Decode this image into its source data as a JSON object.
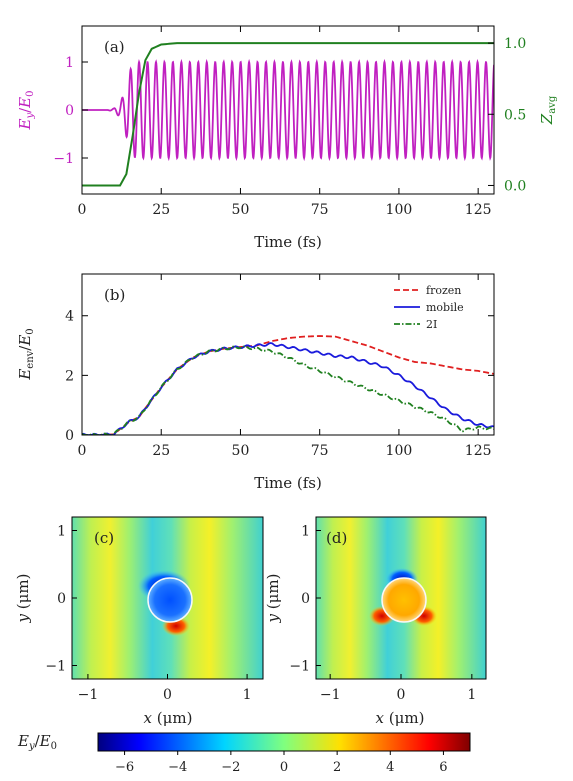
{
  "chart_data": [
    {
      "panel": "(a)",
      "type": "line",
      "xlabel": "Time (fs)",
      "ylabel_left": "E_y/E_0",
      "ylabel_right": "Z_avg",
      "xlim": [
        0,
        130
      ],
      "ylim_left": [
        -1.75,
        1.75
      ],
      "ylim_right": [
        -0.06,
        1.12
      ],
      "xticks": [
        0,
        25,
        50,
        75,
        100,
        125
      ],
      "yticks_left": [
        -1,
        0,
        1
      ],
      "yticks_right": [
        0.0,
        0.5,
        1.0
      ],
      "colors": {
        "field": "#c020c0",
        "zavg": "#208020"
      },
      "series": [
        {
          "axis": "left",
          "color": "#c020c0",
          "x": [
            0,
            8,
            10,
            12,
            13,
            14,
            15,
            16,
            17,
            18,
            19,
            20,
            130
          ],
          "y": [
            0,
            0,
            0.03,
            0.15,
            0.3,
            0.55,
            0.8,
            0.95,
            1,
            1,
            1,
            1,
            1
          ],
          "note_period_fs": 2.67
        },
        {
          "axis": "right",
          "color": "#208020",
          "x": [
            0,
            5,
            10,
            12,
            14,
            16,
            18,
            20,
            22,
            25,
            30,
            40,
            130
          ],
          "y": [
            0.0,
            0.0,
            0.0,
            0.0,
            0.08,
            0.35,
            0.65,
            0.88,
            0.96,
            0.99,
            1.0,
            1.0,
            1.0
          ]
        }
      ]
    },
    {
      "panel": "(b)",
      "type": "line",
      "xlabel": "Time (fs)",
      "ylabel": "E_env/E_0",
      "xlim": [
        0,
        130
      ],
      "ylim": [
        0,
        5.4
      ],
      "xticks": [
        0,
        25,
        50,
        75,
        100,
        125
      ],
      "yticks": [
        0,
        2,
        4
      ],
      "legend_position": "top-right",
      "series": [
        {
          "name": "frozen",
          "color": "#e02020",
          "style": "dashed",
          "x": [
            0,
            5,
            10,
            12,
            15,
            18,
            20,
            25,
            30,
            35,
            40,
            45,
            50,
            55,
            60,
            65,
            70,
            75,
            80,
            85,
            90,
            95,
            100,
            105,
            110,
            115,
            120,
            125,
            130
          ],
          "y": [
            0,
            0,
            0.02,
            0.2,
            0.45,
            0.6,
            0.9,
            1.6,
            2.2,
            2.6,
            2.8,
            2.9,
            2.95,
            3.0,
            3.15,
            3.25,
            3.3,
            3.32,
            3.3,
            3.15,
            3.0,
            2.8,
            2.6,
            2.45,
            2.4,
            2.3,
            2.2,
            2.15,
            2.05
          ]
        },
        {
          "name": "mobile",
          "color": "#1a1adc",
          "style": "solid",
          "x": [
            0,
            5,
            10,
            12,
            15,
            18,
            20,
            25,
            30,
            35,
            40,
            45,
            50,
            55,
            60,
            65,
            70,
            75,
            80,
            85,
            90,
            95,
            100,
            105,
            110,
            115,
            120,
            125,
            130
          ],
          "y": [
            0,
            0,
            0.02,
            0.2,
            0.45,
            0.6,
            0.9,
            1.6,
            2.2,
            2.6,
            2.8,
            2.9,
            2.95,
            3.0,
            3.05,
            2.95,
            2.85,
            2.75,
            2.65,
            2.6,
            2.45,
            2.3,
            2.0,
            1.65,
            1.25,
            0.85,
            0.55,
            0.35,
            0.25
          ]
        },
        {
          "name": "2I",
          "color": "#208020",
          "style": "dashdot",
          "x": [
            0,
            5,
            10,
            12,
            15,
            18,
            20,
            25,
            30,
            35,
            40,
            45,
            50,
            55,
            60,
            65,
            70,
            75,
            80,
            85,
            90,
            95,
            100,
            105,
            110,
            115,
            118,
            120,
            125,
            130
          ],
          "y": [
            0,
            0,
            0.02,
            0.2,
            0.45,
            0.6,
            0.9,
            1.6,
            2.2,
            2.6,
            2.8,
            2.9,
            2.95,
            2.9,
            2.8,
            2.6,
            2.35,
            2.15,
            1.95,
            1.75,
            1.55,
            1.35,
            1.15,
            0.95,
            0.75,
            0.5,
            0.3,
            0.15,
            0.25,
            0.2
          ]
        }
      ]
    },
    {
      "panel": "(c)",
      "type": "heatmap",
      "xlabel": "x (μm)",
      "ylabel": "y (μm)",
      "xlim": [
        -1.2,
        1.2
      ],
      "ylim": [
        -1.2,
        1.2
      ],
      "xticks": [
        -1,
        0,
        1
      ],
      "yticks": [
        -1,
        0,
        1
      ],
      "description_values": {
        "inner_disk": -4.5,
        "top_lobe": -4.0,
        "bottom_lobe": 3.5,
        "background_range": [
          -1.5,
          2.5
        ]
      }
    },
    {
      "panel": "(d)",
      "type": "heatmap",
      "xlabel": "x (μm)",
      "ylabel": "y (μm)",
      "xlim": [
        -1.2,
        1.2
      ],
      "ylim": [
        -1.2,
        1.2
      ],
      "xticks": [
        -1,
        0,
        1
      ],
      "yticks": [
        -1,
        0,
        1
      ],
      "description_values": {
        "inner_disk": 3.5,
        "top_lobe": -4.5,
        "side_lobes": 4.0,
        "background_range": [
          -1.5,
          2.5
        ]
      }
    },
    {
      "panel": "colorbar",
      "type": "colorbar",
      "label": "E_y/E_0",
      "range": [
        -7,
        7
      ],
      "ticks": [
        -6,
        -4,
        -2,
        0,
        2,
        4,
        6
      ],
      "colormap": "jet"
    }
  ],
  "labels": {
    "panel_a": "(a)",
    "panel_b": "(b)",
    "panel_c": "(c)",
    "panel_d": "(d)",
    "time_fs": "Time (fs)",
    "legend_frozen": "frozen",
    "legend_mobile": "mobile",
    "legend_2i": "2I"
  }
}
